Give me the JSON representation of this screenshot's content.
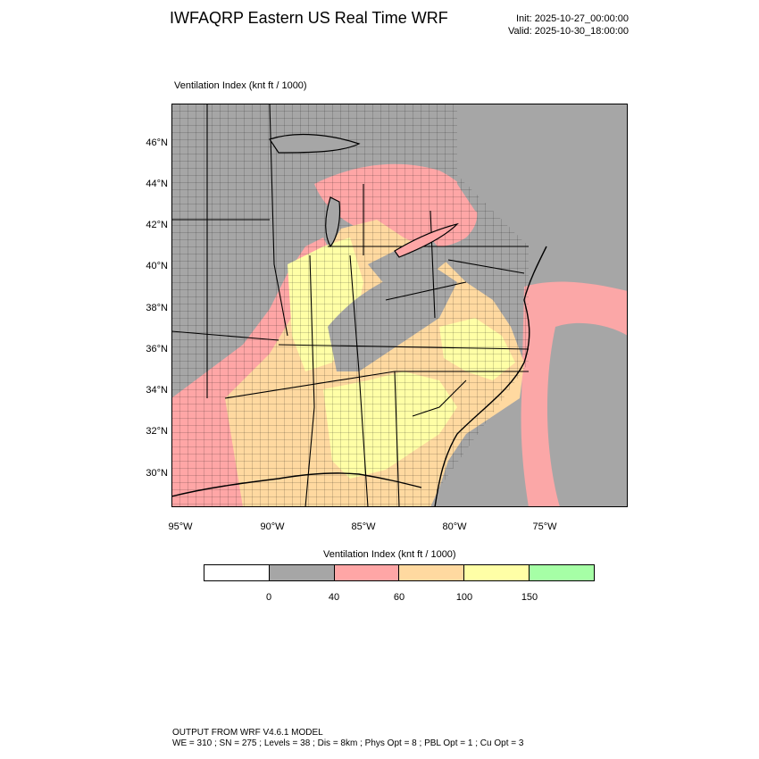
{
  "header": {
    "title": "IWFAQRP Eastern US Real Time WRF",
    "init": "Init: 2025-10-27_00:00:00",
    "valid": "Valid: 2025-10-30_18:00:00"
  },
  "map": {
    "title": "Ventilation Index   (knt ft / 1000)",
    "lat_labels": [
      "46°N",
      "44°N",
      "42°N",
      "40°N",
      "38°N",
      "36°N",
      "34°N",
      "32°N",
      "30°N"
    ],
    "lon_labels": [
      "95°W",
      "90°W",
      "85°W",
      "80°W",
      "75°W"
    ],
    "colors": {
      "lt40": "#a6a6a6",
      "40to60": "#ffa6a6",
      "60to100": "#ffd9a0",
      "100to150": "#ffffa6",
      "gt150": "#a6ffa6",
      "ocean_lt40": "#a6a6a6"
    }
  },
  "legend": {
    "title": "Ventilation Index  (knt ft / 1000)",
    "bins": [
      "#ffffff",
      "#a6a6a6",
      "#ffa6a6",
      "#ffd9a0",
      "#ffffa6",
      "#a6ffa6"
    ],
    "ticks": [
      "0",
      "40",
      "60",
      "100",
      "150"
    ]
  },
  "footer": {
    "line1": "OUTPUT FROM WRF V4.6.1 MODEL",
    "line2": "WE = 310 ; SN = 275 ; Levels = 38 ; Dis = 8km ; Phys Opt = 8 ; PBL Opt = 1 ; Cu Opt = 3"
  }
}
